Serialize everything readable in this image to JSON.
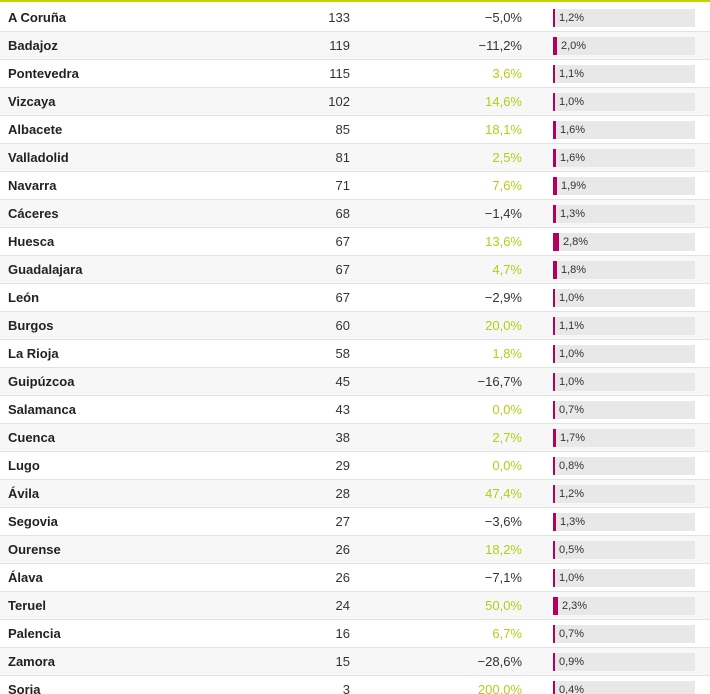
{
  "accent_color": "#c3d400",
  "bar_color": "#b3005e",
  "positive_color": "#b5cc18",
  "rows": [
    {
      "name": "A Coruña",
      "count": "133",
      "change": "−5,0%",
      "share": "1,2%",
      "share_value": 1.2
    },
    {
      "name": "Badajoz",
      "count": "119",
      "change": "−11,2%",
      "share": "2,0%",
      "share_value": 2.0
    },
    {
      "name": "Pontevedra",
      "count": "115",
      "change": "3,6%",
      "share": "1,1%",
      "share_value": 1.1
    },
    {
      "name": "Vizcaya",
      "count": "102",
      "change": "14,6%",
      "share": "1,0%",
      "share_value": 1.0
    },
    {
      "name": "Albacete",
      "count": "85",
      "change": "18,1%",
      "share": "1,6%",
      "share_value": 1.6
    },
    {
      "name": "Valladolid",
      "count": "81",
      "change": "2,5%",
      "share": "1,6%",
      "share_value": 1.6
    },
    {
      "name": "Navarra",
      "count": "71",
      "change": "7,6%",
      "share": "1,9%",
      "share_value": 1.9
    },
    {
      "name": "Cáceres",
      "count": "68",
      "change": "−1,4%",
      "share": "1,3%",
      "share_value": 1.3
    },
    {
      "name": "Huesca",
      "count": "67",
      "change": "13,6%",
      "share": "2,8%",
      "share_value": 2.8
    },
    {
      "name": "Guadalajara",
      "count": "67",
      "change": "4,7%",
      "share": "1,8%",
      "share_value": 1.8
    },
    {
      "name": "León",
      "count": "67",
      "change": "−2,9%",
      "share": "1,0%",
      "share_value": 1.0
    },
    {
      "name": "Burgos",
      "count": "60",
      "change": "20,0%",
      "share": "1,1%",
      "share_value": 1.1
    },
    {
      "name": "La Rioja",
      "count": "58",
      "change": "1,8%",
      "share": "1,0%",
      "share_value": 1.0
    },
    {
      "name": "Guipúzcoa",
      "count": "45",
      "change": "−16,7%",
      "share": "1,0%",
      "share_value": 1.0
    },
    {
      "name": "Salamanca",
      "count": "43",
      "change": "0,0%",
      "share": "0,7%",
      "share_value": 0.7
    },
    {
      "name": "Cuenca",
      "count": "38",
      "change": "2,7%",
      "share": "1,7%",
      "share_value": 1.7
    },
    {
      "name": "Lugo",
      "count": "29",
      "change": "0,0%",
      "share": "0,8%",
      "share_value": 0.8
    },
    {
      "name": "Ávila",
      "count": "28",
      "change": "47,4%",
      "share": "1,2%",
      "share_value": 1.2
    },
    {
      "name": "Segovia",
      "count": "27",
      "change": "−3,6%",
      "share": "1,3%",
      "share_value": 1.3
    },
    {
      "name": "Ourense",
      "count": "26",
      "change": "18,2%",
      "share": "0,5%",
      "share_value": 0.5
    },
    {
      "name": "Álava",
      "count": "26",
      "change": "−7,1%",
      "share": "1,0%",
      "share_value": 1.0
    },
    {
      "name": "Teruel",
      "count": "24",
      "change": "50,0%",
      "share": "2,3%",
      "share_value": 2.3
    },
    {
      "name": "Palencia",
      "count": "16",
      "change": "6,7%",
      "share": "0,7%",
      "share_value": 0.7
    },
    {
      "name": "Zamora",
      "count": "15",
      "change": "−28,6%",
      "share": "0,9%",
      "share_value": 0.9
    },
    {
      "name": "Soria",
      "count": "3",
      "change": "200,0%",
      "share": "0,4%",
      "share_value": 0.4
    }
  ]
}
